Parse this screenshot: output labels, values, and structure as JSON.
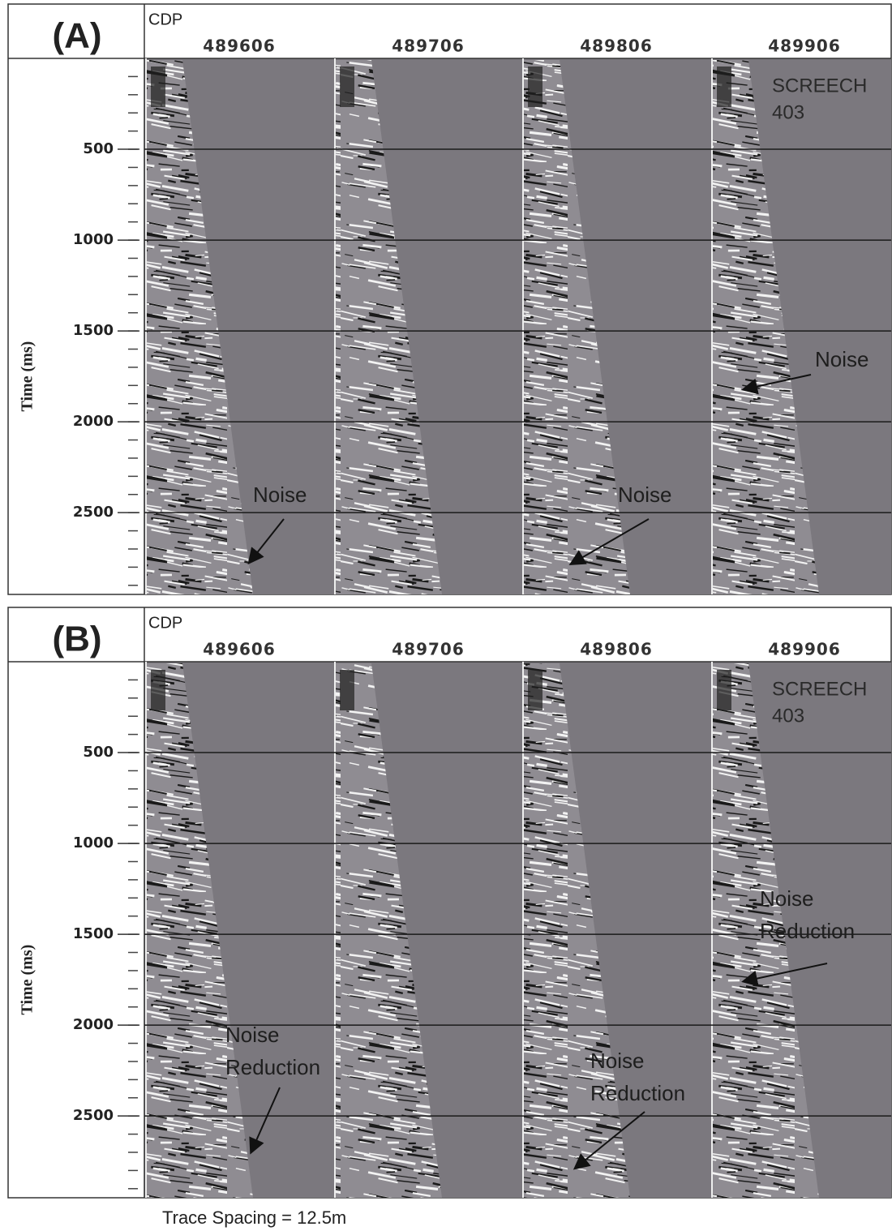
{
  "panels": [
    {
      "label": "(A)",
      "cdp_title": "CDP",
      "cdp_labels": [
        "489606",
        "489706",
        "489806",
        "489906"
      ],
      "y_label": "Time (ms)",
      "ylim": [
        0,
        2950
      ],
      "yticks": [
        500,
        1000,
        1500,
        2000,
        2500
      ],
      "survey": [
        "SCREECH",
        "403"
      ],
      "annotations": [
        {
          "lines": [
            "Noise"
          ]
        },
        {
          "lines": [
            "Noise"
          ]
        },
        {
          "lines": [
            "Noise"
          ]
        }
      ]
    },
    {
      "label": "(B)",
      "cdp_title": "CDP",
      "cdp_labels": [
        "489606",
        "489706",
        "489806",
        "489906"
      ],
      "y_label": "Time (ms)",
      "ylim": [
        0,
        2950
      ],
      "yticks": [
        500,
        1000,
        1500,
        2000,
        2500
      ],
      "survey": [
        "SCREECH",
        "403"
      ],
      "annotations": [
        {
          "lines": [
            "Noise",
            "Reduction"
          ]
        },
        {
          "lines": [
            "Noise",
            "Reduction"
          ]
        },
        {
          "lines": [
            "Noise",
            "Reduction"
          ]
        }
      ]
    }
  ],
  "footer": "Trace Spacing = 12.5m"
}
